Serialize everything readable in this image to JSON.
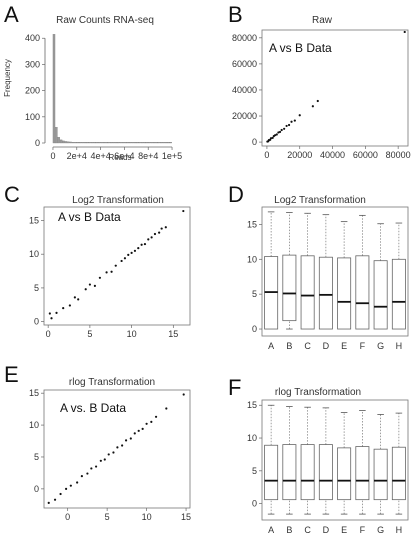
{
  "panels": {
    "A": {
      "letter": "A",
      "title": "Raw Counts RNA-seq",
      "ylabel": "Frequency",
      "xlabel": "Reads",
      "yticks": [
        "0",
        "100",
        "200",
        "300",
        "400"
      ],
      "xticks": [
        "0",
        "2e+4",
        "4e+4",
        "6e+4",
        "8e+4",
        "1e+5"
      ]
    },
    "B": {
      "letter": "B",
      "title": "Raw",
      "inset": "A vs B Data",
      "yticks": [
        "0",
        "20000",
        "40000",
        "60000",
        "80000"
      ],
      "xticks": [
        "0",
        "20000",
        "40000",
        "60000",
        "80000"
      ]
    },
    "C": {
      "letter": "C",
      "title": "Log2 Transformation",
      "inset": "A vs B Data",
      "yticks": [
        "0",
        "5",
        "10",
        "15"
      ],
      "xticks": [
        "0",
        "5",
        "10",
        "15"
      ]
    },
    "D": {
      "letter": "D",
      "title": "Log2 Transformation",
      "yticks": [
        "0",
        "5",
        "10",
        "15"
      ],
      "categories": [
        "A",
        "B",
        "C",
        "D",
        "E",
        "F",
        "G",
        "H"
      ]
    },
    "E": {
      "letter": "E",
      "title": "rlog Transformation",
      "inset": "A vs. B Data",
      "yticks": [
        "0",
        "5",
        "10",
        "15"
      ],
      "xticks": [
        "0",
        "5",
        "10",
        "15"
      ]
    },
    "F": {
      "letter": "F",
      "title": "rlog Transformation",
      "yticks": [
        "0",
        "5",
        "10",
        "15"
      ],
      "categories": [
        "A",
        "B",
        "C",
        "D",
        "E",
        "F",
        "G",
        "H"
      ]
    }
  },
  "chart_data": [
    {
      "panel": "A",
      "type": "bar",
      "title": "Raw Counts RNA-seq",
      "xlabel": "Reads",
      "ylabel": "Frequency",
      "xlim": [
        -5000,
        105000
      ],
      "ylim": [
        0,
        420
      ],
      "bin_width": 2000,
      "bins_start": [
        0,
        2000,
        4000,
        6000,
        8000,
        10000,
        12000,
        14000,
        16000,
        18000,
        20000,
        22000,
        24000,
        26000,
        28000,
        30000,
        32000,
        34000,
        36000,
        38000,
        40000,
        42000,
        44000,
        46000,
        48000,
        50000,
        52000,
        54000,
        56000,
        58000,
        60000,
        62000,
        64000,
        66000,
        68000,
        70000,
        72000,
        74000,
        76000,
        78000,
        80000,
        82000,
        84000,
        86000,
        88000,
        90000,
        92000,
        94000,
        96000,
        98000
      ],
      "values": [
        415,
        60,
        22,
        12,
        8,
        6,
        5,
        4,
        3,
        3,
        3,
        2,
        2,
        2,
        2,
        2,
        1,
        1,
        1,
        1,
        1,
        1,
        1,
        1,
        1,
        1,
        1,
        1,
        1,
        1,
        1,
        1,
        1,
        1,
        1,
        1,
        1,
        1,
        1,
        1,
        1,
        1,
        1,
        1,
        1,
        1,
        1,
        1,
        1,
        1
      ]
    },
    {
      "panel": "B",
      "type": "scatter",
      "title": "Raw",
      "xlim": [
        -3000,
        86000
      ],
      "ylim": [
        -3000,
        86000
      ],
      "points": [
        [
          300,
          400
        ],
        [
          800,
          600
        ],
        [
          1200,
          1500
        ],
        [
          2000,
          1800
        ],
        [
          2500,
          3000
        ],
        [
          3500,
          3200
        ],
        [
          4200,
          4600
        ],
        [
          5000,
          5300
        ],
        [
          6000,
          5800
        ],
        [
          7000,
          7400
        ],
        [
          8000,
          7800
        ],
        [
          9000,
          9300
        ],
        [
          10500,
          10200
        ],
        [
          12000,
          12400
        ],
        [
          13500,
          13100
        ],
        [
          15000,
          15600
        ],
        [
          17000,
          16500
        ],
        [
          20000,
          20600
        ],
        [
          28000,
          27500
        ],
        [
          31000,
          31500
        ],
        [
          84000,
          84500
        ]
      ]
    },
    {
      "panel": "C",
      "type": "scatter",
      "title": "Log2 Transformation",
      "xlim": [
        -0.5,
        17
      ],
      "ylim": [
        -0.5,
        17
      ],
      "points": [
        [
          0.2,
          1.2
        ],
        [
          0.4,
          0.5
        ],
        [
          1.0,
          1.3
        ],
        [
          1.8,
          2.0
        ],
        [
          2.6,
          2.4
        ],
        [
          3.2,
          3.6
        ],
        [
          3.6,
          3.3
        ],
        [
          4.5,
          4.8
        ],
        [
          5.0,
          5.5
        ],
        [
          5.6,
          5.3
        ],
        [
          6.2,
          6.5
        ],
        [
          7.0,
          7.3
        ],
        [
          7.6,
          7.4
        ],
        [
          8.1,
          8.3
        ],
        [
          8.8,
          9.0
        ],
        [
          9.2,
          9.4
        ],
        [
          9.6,
          9.9
        ],
        [
          10.0,
          10.2
        ],
        [
          10.4,
          10.5
        ],
        [
          10.8,
          10.9
        ],
        [
          11.2,
          11.4
        ],
        [
          11.6,
          11.5
        ],
        [
          12.0,
          12.2
        ],
        [
          12.4,
          12.5
        ],
        [
          12.8,
          13.0
        ],
        [
          13.3,
          13.2
        ],
        [
          13.6,
          13.8
        ],
        [
          14.1,
          14.0
        ],
        [
          16.2,
          16.4
        ]
      ]
    },
    {
      "panel": "D",
      "type": "box",
      "title": "Log2 Transformation",
      "ylim": [
        -1,
        17.5
      ],
      "categories": [
        "A",
        "B",
        "C",
        "D",
        "E",
        "F",
        "G",
        "H"
      ],
      "boxes": [
        {
          "whisker_low": 0,
          "q1": 0,
          "median": 5.3,
          "q3": 10.4,
          "whisker_high": 16.8
        },
        {
          "whisker_low": 0,
          "q1": 1.2,
          "median": 5.1,
          "q3": 10.6,
          "whisker_high": 16.7
        },
        {
          "whisker_low": 0,
          "q1": 0,
          "median": 4.8,
          "q3": 10.5,
          "whisker_high": 16.6
        },
        {
          "whisker_low": 0,
          "q1": 0,
          "median": 4.9,
          "q3": 10.3,
          "whisker_high": 16.4
        },
        {
          "whisker_low": 0,
          "q1": 0,
          "median": 3.9,
          "q3": 10.2,
          "whisker_high": 15.4
        },
        {
          "whisker_low": 0,
          "q1": 0,
          "median": 3.7,
          "q3": 10.5,
          "whisker_high": 16.3
        },
        {
          "whisker_low": 0,
          "q1": 0,
          "median": 3.2,
          "q3": 9.8,
          "whisker_high": 15.1
        },
        {
          "whisker_low": 0,
          "q1": 0,
          "median": 3.9,
          "q3": 10.0,
          "whisker_high": 15.2
        }
      ]
    },
    {
      "panel": "E",
      "type": "scatter",
      "title": "rlog Transformation",
      "xlim": [
        -3,
        15.5
      ],
      "ylim": [
        -3,
        15.5
      ],
      "points": [
        [
          -2.4,
          -2.2
        ],
        [
          -1.6,
          -1.7
        ],
        [
          -0.9,
          -0.8
        ],
        [
          -0.2,
          0.0
        ],
        [
          0.4,
          0.5
        ],
        [
          1.2,
          1.0
        ],
        [
          1.8,
          2.0
        ],
        [
          2.5,
          2.4
        ],
        [
          3.0,
          3.2
        ],
        [
          3.6,
          3.5
        ],
        [
          4.2,
          4.4
        ],
        [
          4.7,
          4.6
        ],
        [
          5.2,
          5.4
        ],
        [
          5.8,
          5.7
        ],
        [
          6.3,
          6.5
        ],
        [
          6.9,
          6.8
        ],
        [
          7.4,
          7.6
        ],
        [
          8.0,
          7.9
        ],
        [
          8.5,
          8.7
        ],
        [
          9.0,
          9.1
        ],
        [
          9.5,
          9.4
        ],
        [
          10.0,
          10.2
        ],
        [
          10.6,
          10.5
        ],
        [
          11.2,
          11.3
        ],
        [
          12.5,
          12.6
        ],
        [
          14.7,
          14.8
        ]
      ]
    },
    {
      "panel": "F",
      "type": "box",
      "title": "rlog Transformation",
      "ylim": [
        -2.5,
        15.8
      ],
      "categories": [
        "A",
        "B",
        "C",
        "D",
        "E",
        "F",
        "G",
        "H"
      ],
      "boxes": [
        {
          "whisker_low": -1.6,
          "q1": 0.6,
          "median": 3.5,
          "q3": 8.9,
          "whisker_high": 15.0
        },
        {
          "whisker_low": -1.6,
          "q1": 0.6,
          "median": 3.5,
          "q3": 9.0,
          "whisker_high": 14.8
        },
        {
          "whisker_low": -1.6,
          "q1": 0.6,
          "median": 3.5,
          "q3": 9.0,
          "whisker_high": 14.7
        },
        {
          "whisker_low": -1.6,
          "q1": 0.6,
          "median": 3.5,
          "q3": 9.0,
          "whisker_high": 14.6
        },
        {
          "whisker_low": -1.6,
          "q1": 0.6,
          "median": 3.5,
          "q3": 8.5,
          "whisker_high": 13.9
        },
        {
          "whisker_low": -1.6,
          "q1": 0.6,
          "median": 3.5,
          "q3": 8.7,
          "whisker_high": 14.2
        },
        {
          "whisker_low": -1.6,
          "q1": 0.6,
          "median": 3.5,
          "q3": 8.3,
          "whisker_high": 13.6
        },
        {
          "whisker_low": -1.6,
          "q1": 0.6,
          "median": 3.5,
          "q3": 8.6,
          "whisker_high": 13.8
        }
      ]
    }
  ]
}
